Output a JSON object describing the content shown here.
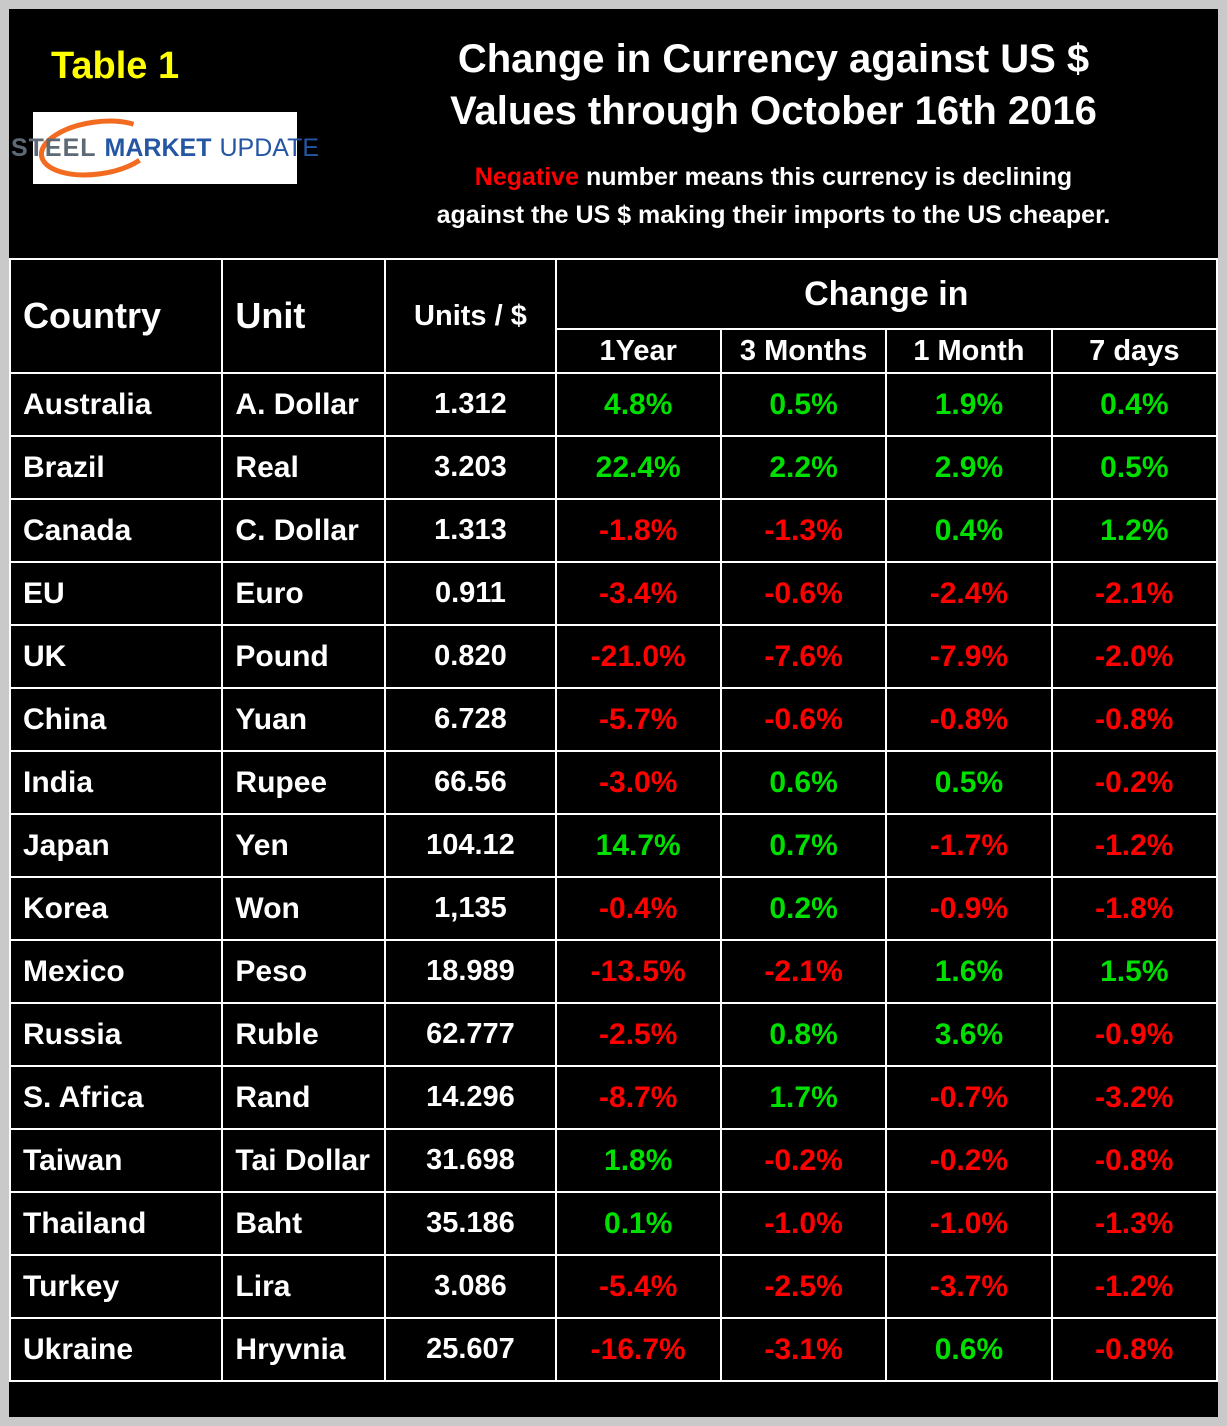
{
  "colors": {
    "positive": "#00e000",
    "negative": "#ff0000",
    "table_label_yellow": "#ffff00",
    "background": "#000000",
    "grid": "#ffffff"
  },
  "header": {
    "table_label": "Table 1",
    "title_line1": "Change in Currency against US $",
    "title_line2": "Values through October 16th 2016",
    "note_negative_word": "Negative",
    "note_line1_rest": " number means this currency is declining",
    "note_line2": "against the US $ making their imports to the US cheaper.",
    "logo": {
      "word1": "STEEL",
      "word2": "MARKET",
      "word3": "UPDATE"
    }
  },
  "table_headers": {
    "country": "Country",
    "unit": "Unit",
    "units_per_dollar": "Units / $",
    "change_in": "Change in"
  },
  "chart_data": {
    "type": "table",
    "title": "Change in Currency against US $ Values through October 16th 2016",
    "note": "Negative number means this currency is declining against the US $ making their imports to the US cheaper.",
    "columns": [
      "Country",
      "Unit",
      "Units / $",
      "1Year",
      "3 Months",
      "1 Month",
      "7 days"
    ],
    "change_columns": [
      "1Year",
      "3 Months",
      "1 Month",
      "7 days"
    ],
    "rows": [
      {
        "country": "Australia",
        "unit": "A. Dollar",
        "units_per_dollar": "1.312",
        "changes": [
          "4.8%",
          "0.5%",
          "1.9%",
          "0.4%"
        ]
      },
      {
        "country": "Brazil",
        "unit": "Real",
        "units_per_dollar": "3.203",
        "changes": [
          "22.4%",
          "2.2%",
          "2.9%",
          "0.5%"
        ]
      },
      {
        "country": "Canada",
        "unit": "C. Dollar",
        "units_per_dollar": "1.313",
        "changes": [
          "-1.8%",
          "-1.3%",
          "0.4%",
          "1.2%"
        ]
      },
      {
        "country": "EU",
        "unit": "Euro",
        "units_per_dollar": "0.911",
        "changes": [
          "-3.4%",
          "-0.6%",
          "-2.4%",
          "-2.1%"
        ]
      },
      {
        "country": "UK",
        "unit": "Pound",
        "units_per_dollar": "0.820",
        "changes": [
          "-21.0%",
          "-7.6%",
          "-7.9%",
          "-2.0%"
        ]
      },
      {
        "country": "China",
        "unit": "Yuan",
        "units_per_dollar": "6.728",
        "changes": [
          "-5.7%",
          "-0.6%",
          "-0.8%",
          "-0.8%"
        ]
      },
      {
        "country": "India",
        "unit": "Rupee",
        "units_per_dollar": "66.56",
        "changes": [
          "-3.0%",
          "0.6%",
          "0.5%",
          "-0.2%"
        ]
      },
      {
        "country": "Japan",
        "unit": "Yen",
        "units_per_dollar": "104.12",
        "changes": [
          "14.7%",
          "0.7%",
          "-1.7%",
          "-1.2%"
        ]
      },
      {
        "country": "Korea",
        "unit": "Won",
        "units_per_dollar": "1,135",
        "changes": [
          "-0.4%",
          "0.2%",
          "-0.9%",
          "-1.8%"
        ]
      },
      {
        "country": "Mexico",
        "unit": "Peso",
        "units_per_dollar": "18.989",
        "changes": [
          "-13.5%",
          "-2.1%",
          "1.6%",
          "1.5%"
        ]
      },
      {
        "country": "Russia",
        "unit": "Ruble",
        "units_per_dollar": "62.777",
        "changes": [
          "-2.5%",
          "0.8%",
          "3.6%",
          "-0.9%"
        ]
      },
      {
        "country": "S. Africa",
        "unit": "Rand",
        "units_per_dollar": "14.296",
        "changes": [
          "-8.7%",
          "1.7%",
          "-0.7%",
          "-3.2%"
        ]
      },
      {
        "country": "Taiwan",
        "unit": "Tai Dollar",
        "units_per_dollar": "31.698",
        "changes": [
          "1.8%",
          "-0.2%",
          "-0.2%",
          "-0.8%"
        ]
      },
      {
        "country": "Thailand",
        "unit": "Baht",
        "units_per_dollar": "35.186",
        "changes": [
          "0.1%",
          "-1.0%",
          "-1.0%",
          "-1.3%"
        ]
      },
      {
        "country": "Turkey",
        "unit": "Lira",
        "units_per_dollar": "3.086",
        "changes": [
          "-5.4%",
          "-2.5%",
          "-3.7%",
          "-1.2%"
        ]
      },
      {
        "country": "Ukraine",
        "unit": "Hryvnia",
        "units_per_dollar": "25.607",
        "changes": [
          "-16.7%",
          "-3.1%",
          "0.6%",
          "-0.8%"
        ]
      }
    ]
  }
}
